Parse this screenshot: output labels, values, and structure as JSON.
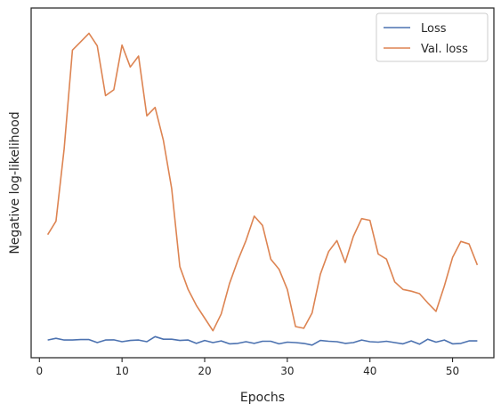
{
  "chart_data": {
    "type": "line",
    "title": "",
    "xlabel": "Epochs",
    "ylabel": "Negative log-likelihood",
    "xlim": [
      -1,
      55
    ],
    "ylim": [
      -1.5,
      40
    ],
    "xticks": [
      0,
      10,
      20,
      30,
      40,
      50
    ],
    "grid": false,
    "legend_position": "top-right",
    "series": [
      {
        "name": "Loss",
        "color": "#4c72b0",
        "x": [
          1,
          2,
          3,
          4,
          5,
          6,
          7,
          8,
          9,
          10,
          11,
          12,
          13,
          14,
          15,
          16,
          17,
          18,
          19,
          20,
          21,
          22,
          23,
          24,
          25,
          26,
          27,
          28,
          29,
          30,
          31,
          32,
          33,
          34,
          35,
          36,
          37,
          38,
          39,
          40,
          41,
          42,
          43,
          44,
          45,
          46,
          47,
          48,
          49,
          50,
          51,
          52,
          53
        ],
        "values": [
          0.6,
          0.8,
          0.6,
          0.6,
          0.65,
          0.65,
          0.3,
          0.6,
          0.62,
          0.4,
          0.55,
          0.6,
          0.4,
          1.0,
          0.7,
          0.7,
          0.55,
          0.6,
          0.2,
          0.55,
          0.3,
          0.5,
          0.15,
          0.2,
          0.4,
          0.2,
          0.45,
          0.45,
          0.15,
          0.35,
          0.3,
          0.2,
          0.0,
          0.55,
          0.45,
          0.4,
          0.2,
          0.3,
          0.6,
          0.4,
          0.35,
          0.45,
          0.3,
          0.15,
          0.5,
          0.1,
          0.7,
          0.35,
          0.6,
          0.15,
          0.2,
          0.5,
          0.5
        ]
      },
      {
        "name": "Val. loss",
        "color": "#dd8452",
        "x": [
          1,
          2,
          3,
          4,
          5,
          6,
          7,
          8,
          9,
          10,
          11,
          12,
          13,
          14,
          15,
          16,
          17,
          18,
          19,
          20,
          21,
          22,
          23,
          24,
          25,
          26,
          27,
          28,
          29,
          30,
          31,
          32,
          33,
          34,
          35,
          36,
          37,
          38,
          39,
          40,
          41,
          42,
          43,
          44,
          45,
          46,
          47,
          48,
          49,
          50,
          51,
          52,
          53
        ],
        "values": [
          13.1,
          14.7,
          23.3,
          35.0,
          36.0,
          37.0,
          35.5,
          29.6,
          30.3,
          35.6,
          33.0,
          34.3,
          27.2,
          28.2,
          24.3,
          18.6,
          9.3,
          6.6,
          4.7,
          3.2,
          1.7,
          3.7,
          7.3,
          10.0,
          12.4,
          15.3,
          14.2,
          10.2,
          9.0,
          6.6,
          2.2,
          2.0,
          3.8,
          8.4,
          11.1,
          12.4,
          9.8,
          12.9,
          15.0,
          14.8,
          10.8,
          10.2,
          7.5,
          6.6,
          6.4,
          6.1,
          5.0,
          4.0,
          7.0,
          10.4,
          12.3,
          12.0,
          9.5
        ]
      }
    ]
  }
}
